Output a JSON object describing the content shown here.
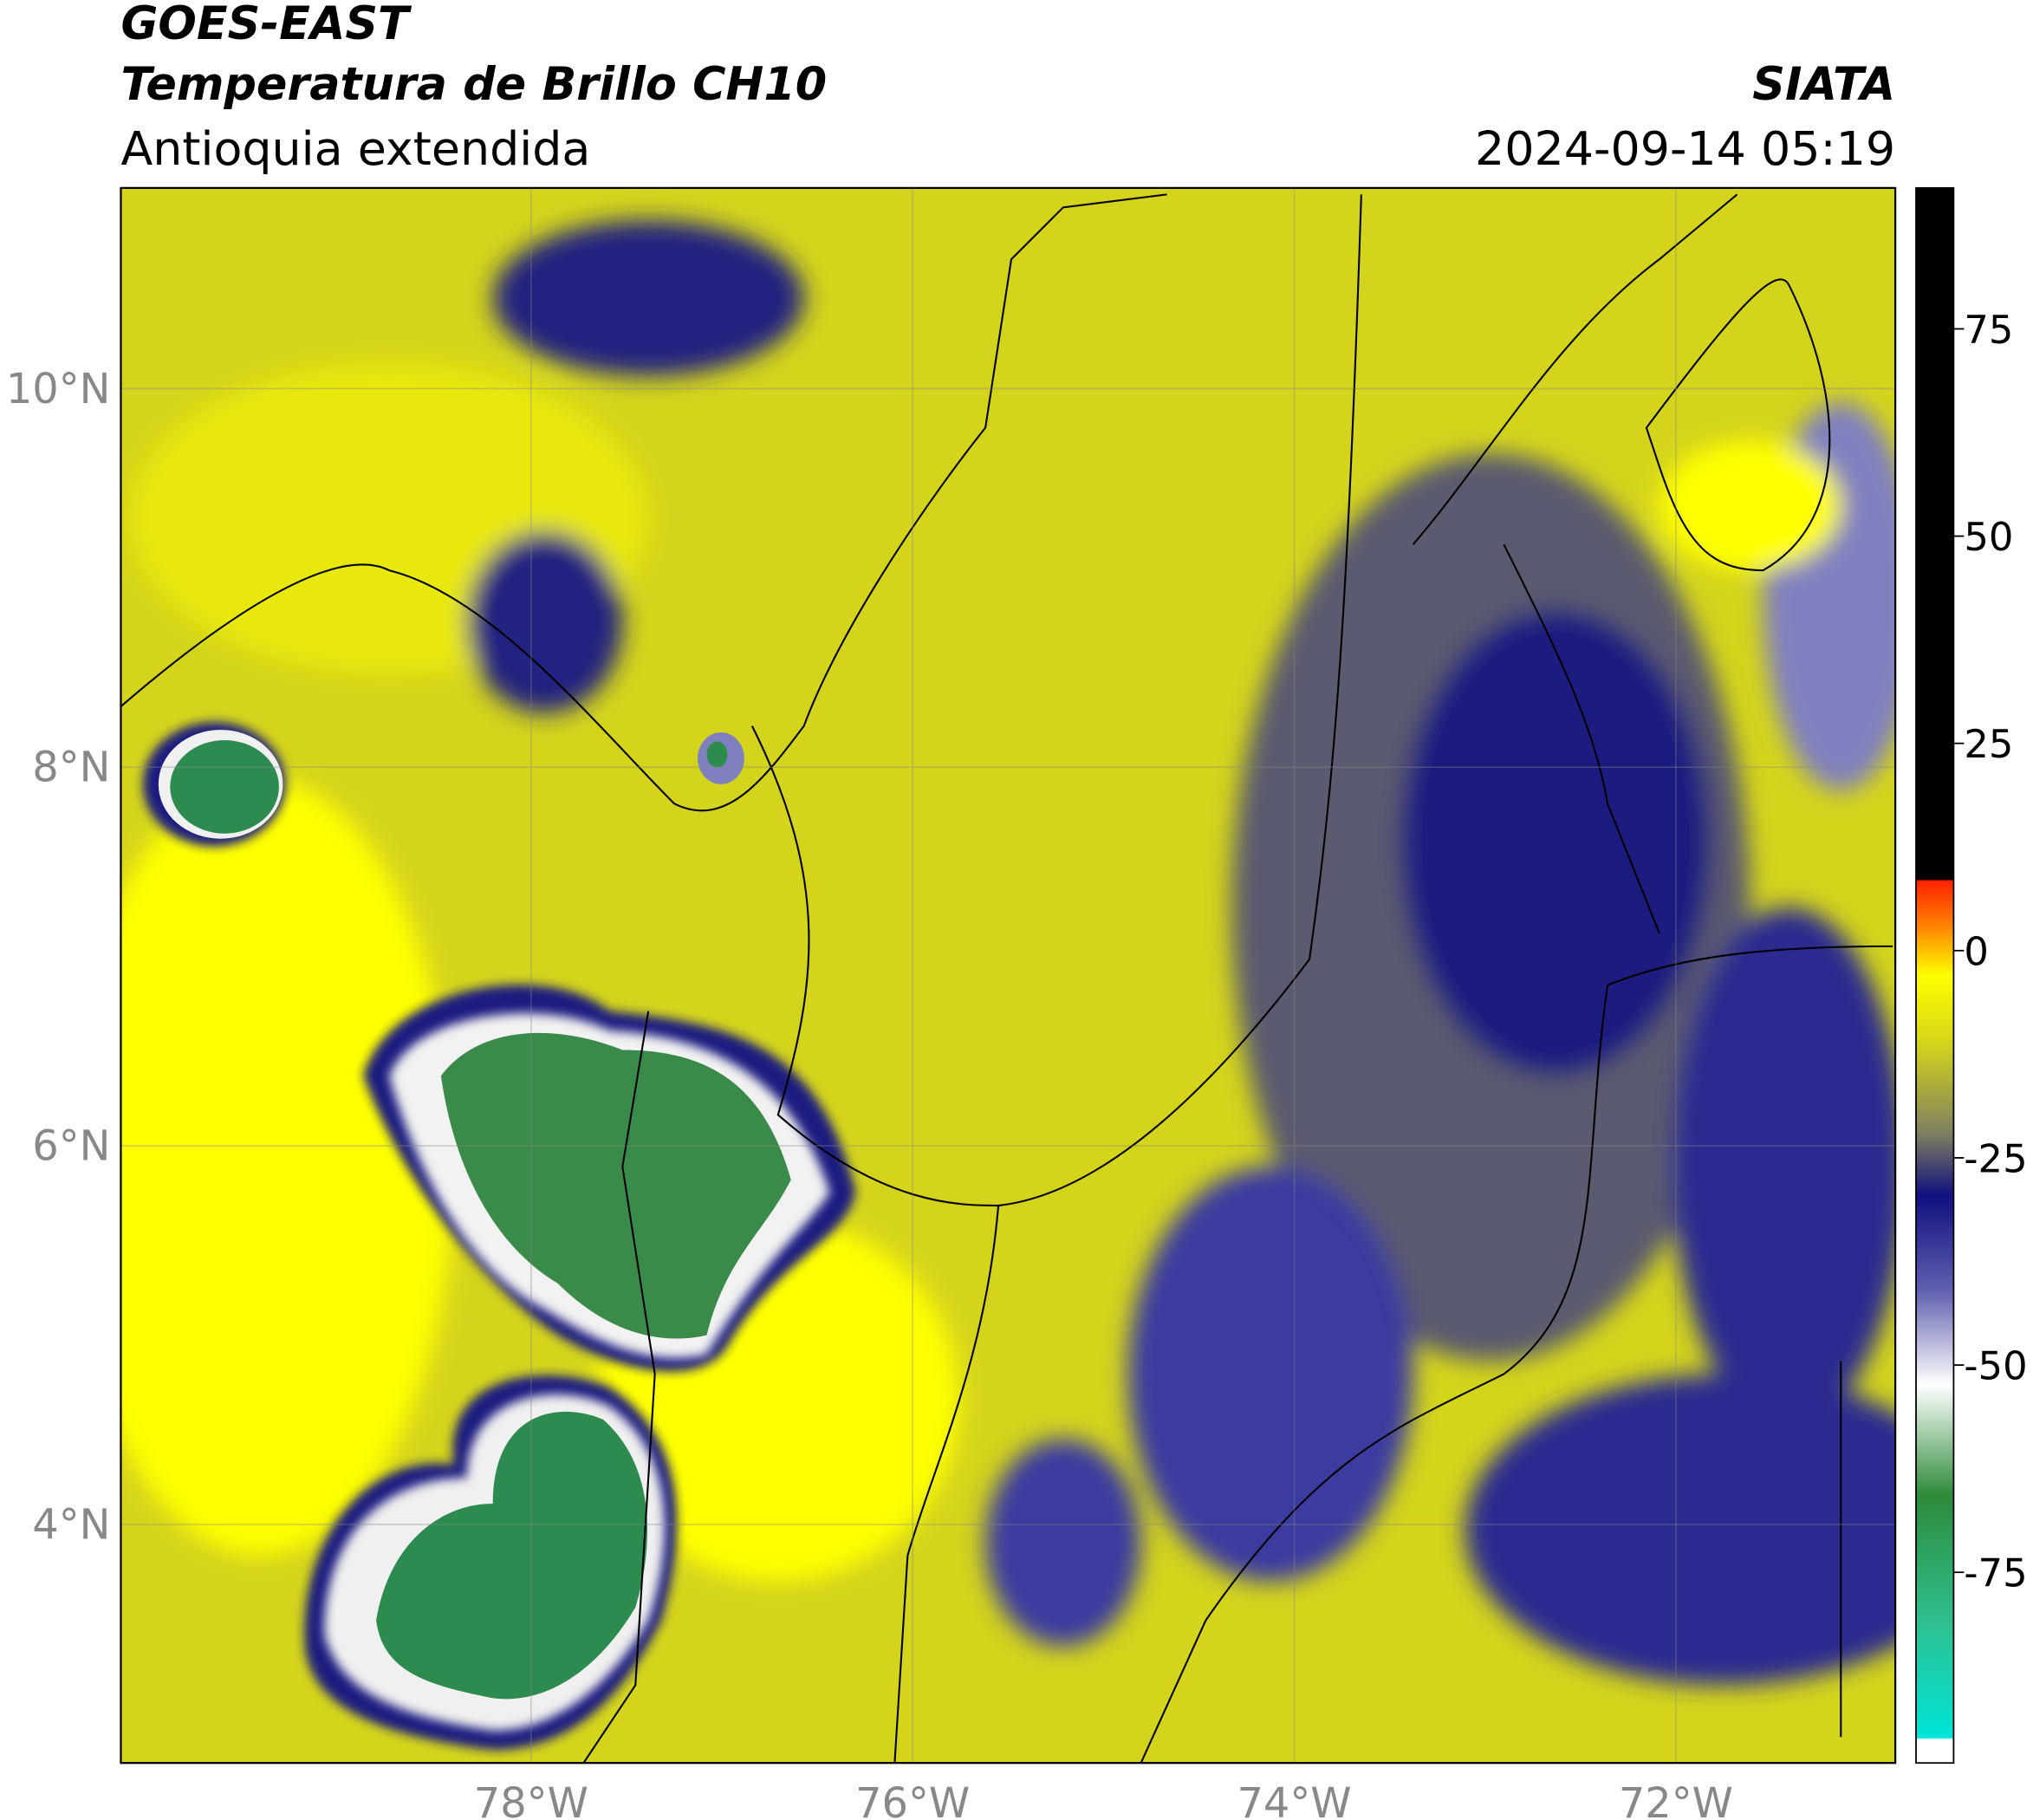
{
  "header": {
    "satellite": "GOES-EAST",
    "product": "Temperatura de Brillo CH10",
    "region": "Antioquia extendida",
    "agency": "SIATA",
    "datetime": "2024-09-14 05:19"
  },
  "map": {
    "lonlim": [
      -80.15,
      -70.85
    ],
    "latlim": [
      2.74,
      11.06
    ],
    "lon_ticks": [
      {
        "value": -78,
        "label": "78°W"
      },
      {
        "value": -76,
        "label": "76°W"
      },
      {
        "value": -74,
        "label": "74°W"
      },
      {
        "value": -72,
        "label": "72°W"
      }
    ],
    "lat_ticks": [
      {
        "value": 4,
        "label": "4°N"
      },
      {
        "value": 6,
        "label": "6°N"
      },
      {
        "value": 8,
        "label": "8°N"
      },
      {
        "value": 10,
        "label": "10°N"
      }
    ],
    "grid": true
  },
  "colorbar": {
    "lim": [
      -98,
      92
    ],
    "ticks": [
      -75,
      -50,
      -25,
      0,
      25,
      50,
      75
    ]
  }
}
